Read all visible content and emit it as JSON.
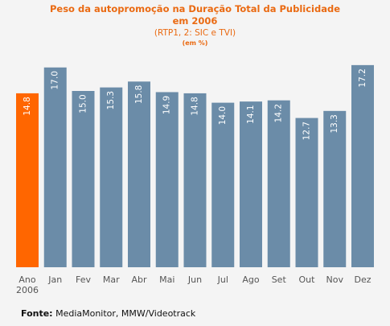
{
  "title_line1": "Peso da autopromoção na Duração Total da Publicidade",
  "title_line2": "em 2006",
  "subtitle": "(RTP1, 2: SIC e TVI)",
  "unit": "(em %)",
  "source_label": "Fonte:",
  "source_text": "MediaMonitor, MMW/Videotrack",
  "chart_data": {
    "type": "bar",
    "title": "Peso da autopromoção na Duração Total da Publicidade em 2006",
    "subtitle": "(RTP1, 2: SIC e TVI)",
    "unit": "(em %)",
    "xlabel": "",
    "ylabel": "",
    "ylim": [
      0,
      20
    ],
    "grid": false,
    "categories": [
      [
        "Ano",
        "2006"
      ],
      [
        "Jan"
      ],
      [
        "Fev"
      ],
      [
        "Mar"
      ],
      [
        "Abr"
      ],
      [
        "Mai"
      ],
      [
        "Jun"
      ],
      [
        "Jul"
      ],
      [
        "Ago"
      ],
      [
        "Set"
      ],
      [
        "Out"
      ],
      [
        "Nov"
      ],
      [
        "Dez"
      ]
    ],
    "values": [
      14.8,
      17.0,
      15.0,
      15.3,
      15.8,
      14.9,
      14.8,
      14.0,
      14.1,
      14.2,
      12.7,
      13.3,
      17.2
    ],
    "value_labels": [
      "14.8",
      "17.0",
      "15.0",
      "15.3",
      "15.8",
      "14.9",
      "14.8",
      "14.0",
      "14.1",
      "14.2",
      "12.7",
      "13.3",
      "17.2"
    ],
    "colors": {
      "highlight": "#ff6600",
      "bar": "#6b8ca8",
      "value_text": "#ffffff",
      "axis_text": "#555555"
    },
    "highlight_index": 0
  }
}
